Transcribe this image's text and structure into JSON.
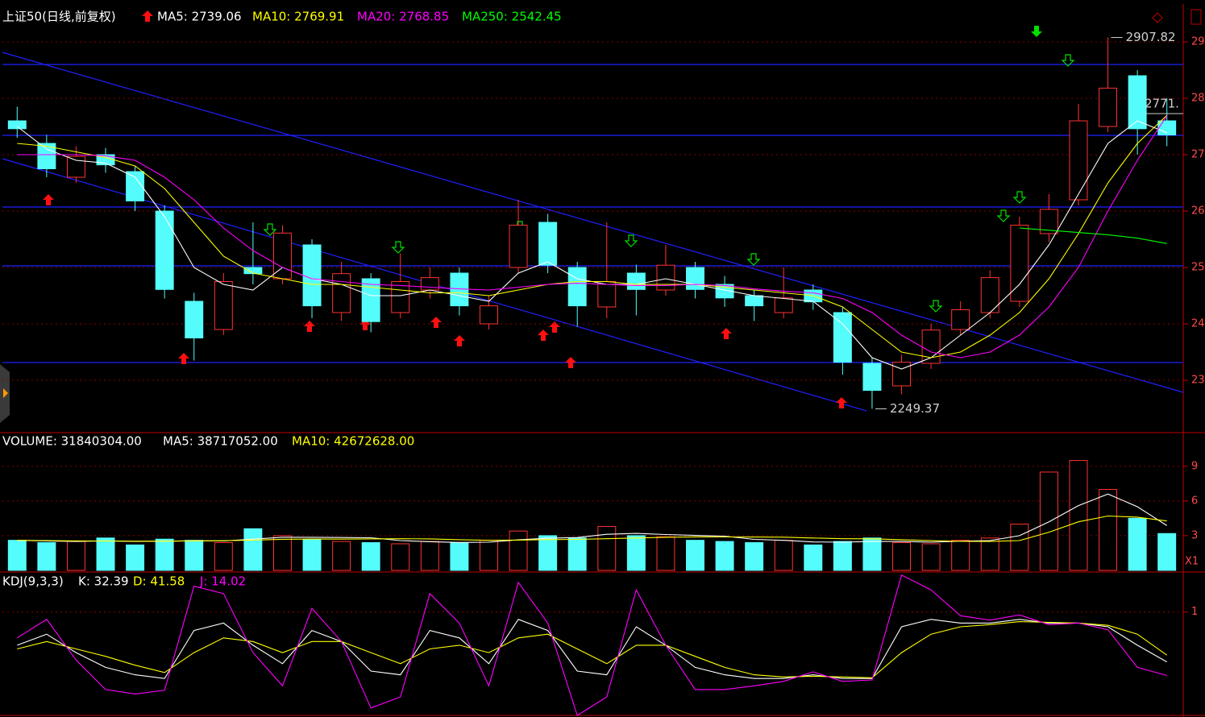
{
  "chart_data": [
    {
      "type": "candlestick",
      "title": "上证50(日线,前复权)",
      "open": [
        2760,
        2720,
        2660,
        2700,
        2670,
        2600,
        2440,
        2390,
        2500,
        2480,
        2540,
        2420,
        2480,
        2420,
        2460,
        2490,
        2400,
        2500,
        2580,
        2500,
        2430,
        2490,
        2460,
        2500,
        2470,
        2450,
        2420,
        2460,
        2420,
        2330,
        2290,
        2330,
        2390,
        2420,
        2440,
        2560,
        2620,
        2750,
        2840,
        2760
      ],
      "high": [
        2785,
        2735,
        2715,
        2712,
        2680,
        2610,
        2455,
        2490,
        2580,
        2575,
        2550,
        2510,
        2490,
        2525,
        2500,
        2500,
        2450,
        2620,
        2595,
        2510,
        2580,
        2505,
        2540,
        2510,
        2485,
        2460,
        2500,
        2470,
        2430,
        2340,
        2345,
        2400,
        2440,
        2495,
        2590,
        2630,
        2790,
        2907.82,
        2850,
        2800
      ],
      "low": [
        2730,
        2660,
        2650,
        2668,
        2600,
        2445,
        2335,
        2380,
        2470,
        2470,
        2410,
        2405,
        2385,
        2410,
        2445,
        2415,
        2390,
        2490,
        2490,
        2395,
        2410,
        2415,
        2450,
        2445,
        2430,
        2405,
        2410,
        2425,
        2310,
        2249.37,
        2275,
        2320,
        2380,
        2410,
        2430,
        2545,
        2610,
        2740,
        2700,
        2715
      ],
      "close": [
        2746,
        2675,
        2697,
        2682,
        2618,
        2461,
        2375,
        2475,
        2489,
        2561,
        2432,
        2489,
        2404,
        2475,
        2482,
        2432,
        2432,
        2575,
        2504,
        2432,
        2475,
        2461,
        2504,
        2461,
        2446,
        2432,
        2446,
        2439,
        2332,
        2282,
        2332,
        2389,
        2425,
        2482,
        2575,
        2603,
        2760,
        2818,
        2746,
        2735
      ],
      "colors": {
        "up": "#ff3232",
        "down": "#54fcfc"
      },
      "overlays": [
        {
          "name": "MA5: 2739.06",
          "color": "#ffffff",
          "values": [
            2750,
            2710,
            2690,
            2685,
            2660,
            2590,
            2500,
            2470,
            2460,
            2500,
            2480,
            2470,
            2450,
            2450,
            2460,
            2450,
            2440,
            2490,
            2510,
            2480,
            2470,
            2470,
            2480,
            2470,
            2460,
            2450,
            2445,
            2440,
            2400,
            2340,
            2320,
            2340,
            2380,
            2420,
            2470,
            2540,
            2630,
            2720,
            2760,
            2739.06
          ]
        },
        {
          "name": "MA10: 2769.91",
          "color": "#ffff00",
          "values": [
            2720,
            2715,
            2705,
            2695,
            2680,
            2640,
            2580,
            2520,
            2490,
            2480,
            2470,
            2470,
            2465,
            2460,
            2455,
            2455,
            2450,
            2460,
            2470,
            2475,
            2475,
            2470,
            2470,
            2470,
            2465,
            2460,
            2455,
            2450,
            2430,
            2390,
            2350,
            2340,
            2350,
            2380,
            2420,
            2480,
            2560,
            2650,
            2720,
            2769.91
          ]
        },
        {
          "name": "MA20: 2768.85",
          "color": "#ff00ff",
          "values": [
            2700,
            2700,
            2700,
            2698,
            2690,
            2660,
            2620,
            2570,
            2530,
            2500,
            2480,
            2475,
            2470,
            2468,
            2465,
            2462,
            2460,
            2465,
            2470,
            2472,
            2470,
            2468,
            2468,
            2470,
            2468,
            2462,
            2458,
            2455,
            2445,
            2420,
            2380,
            2350,
            2340,
            2350,
            2380,
            2430,
            2500,
            2600,
            2690,
            2768.85
          ]
        },
        {
          "name": "MA250: 2542.45",
          "color": "#00ff00",
          "values": [
            null,
            null,
            null,
            null,
            null,
            null,
            null,
            null,
            null,
            null,
            null,
            null,
            null,
            null,
            null,
            null,
            null,
            null,
            null,
            null,
            null,
            null,
            null,
            null,
            null,
            null,
            null,
            null,
            null,
            null,
            null,
            null,
            null,
            null,
            2570,
            2566,
            2562,
            2558,
            2552,
            2542.45
          ]
        }
      ],
      "annotations": [
        {
          "value": 2907.82,
          "at": "high"
        },
        {
          "value": 2249.37,
          "at": "low"
        }
      ],
      "price_marker": {
        "value": 2790,
        "label": "2771."
      },
      "ylim": [
        2210,
        2960
      ],
      "yticks": [
        2300,
        2400,
        2500,
        2600,
        2700,
        2800,
        2900
      ],
      "grid": true
    },
    {
      "type": "bar",
      "series": [
        {
          "name": "VOLUME: 31840304.00",
          "color": "#ffffff",
          "values": [
            26000000,
            24000000,
            25000000,
            28000000,
            22000000,
            27000000,
            26000000,
            24000000,
            36000000,
            30000000,
            27000000,
            25000000,
            24000000,
            23000000,
            25000000,
            24000000,
            26000000,
            34000000,
            30000000,
            28000000,
            38000000,
            30000000,
            29000000,
            26000000,
            25000000,
            24000000,
            26000000,
            22000000,
            25000000,
            28000000,
            24000000,
            23000000,
            26000000,
            28000000,
            40000000,
            85000000,
            95000000,
            70000000,
            45000000,
            31840304
          ]
        },
        {
          "name": "MA5: 38717052.00",
          "color": "#ffffff",
          "values": [
            26000000,
            25500000,
            25000000,
            25500000,
            25000000,
            25200000,
            25600000,
            25400000,
            27000000,
            28600000,
            28600000,
            28400000,
            28200000,
            25800000,
            24800000,
            24200000,
            24400000,
            26400000,
            27800000,
            28400000,
            31200000,
            32000000,
            31000000,
            30200000,
            29600000,
            26800000,
            26000000,
            24600000,
            24400000,
            25000000,
            25000000,
            24400000,
            25200000,
            25800000,
            30000000,
            42000000,
            56000000,
            66000000,
            55000000,
            38717052
          ]
        },
        {
          "name": "MA10: 42672628.00",
          "color": "#ffff00",
          "values": [
            26000000,
            25800000,
            25500000,
            25400000,
            25200000,
            25300000,
            25500000,
            25600000,
            26200000,
            26900000,
            27100000,
            27000000,
            27200000,
            27400000,
            27200000,
            26500000,
            26000000,
            26200000,
            26600000,
            26800000,
            27400000,
            28000000,
            28600000,
            29000000,
            28900000,
            28800000,
            28700000,
            28000000,
            27400000,
            27300000,
            26500000,
            25700000,
            25100000,
            25000000,
            25800000,
            33000000,
            42000000,
            47000000,
            46000000,
            42672628
          ]
        }
      ],
      "unit_label": "X1",
      "ylim": [
        0,
        117000000
      ],
      "yticks": [
        {
          "value": 30000000,
          "label": "3"
        },
        {
          "value": 60000000,
          "label": "6"
        },
        {
          "value": 90000000,
          "label": "9"
        }
      ],
      "grid": true
    },
    {
      "type": "line",
      "title": "KDJ(9,3,3)",
      "series": [
        {
          "name": "K: 32.39",
          "color": "#ffffff",
          "values": [
            55,
            70,
            45,
            25,
            15,
            10,
            75,
            85,
            55,
            30,
            75,
            60,
            20,
            15,
            75,
            65,
            30,
            90,
            75,
            20,
            15,
            80,
            55,
            25,
            15,
            10,
            10,
            15,
            10,
            10,
            80,
            90,
            85,
            85,
            90,
            85,
            85,
            80,
            55,
            32.39
          ]
        },
        {
          "name": "D: 41.58",
          "color": "#ffff00",
          "values": [
            50,
            60,
            50,
            40,
            28,
            18,
            45,
            65,
            60,
            45,
            60,
            60,
            45,
            30,
            50,
            55,
            45,
            65,
            70,
            50,
            30,
            55,
            55,
            40,
            25,
            15,
            12,
            13,
            12,
            11,
            45,
            70,
            80,
            83,
            87,
            86,
            85,
            82,
            70,
            41.58
          ]
        },
        {
          "name": "J: 14.02",
          "color": "#ff00ff",
          "values": [
            65,
            90,
            35,
            -5,
            -11,
            -6,
            135,
            125,
            45,
            0,
            105,
            60,
            -30,
            -15,
            125,
            85,
            0,
            140,
            85,
            -40,
            -15,
            130,
            55,
            -5,
            -5,
            0,
            6,
            19,
            6,
            8,
            150,
            130,
            95,
            89,
            96,
            83,
            85,
            76,
            25,
            14.02
          ]
        }
      ],
      "ylim": [
        -40,
        152
      ],
      "yticks": [
        {
          "value": 100,
          "label": "1"
        }
      ],
      "grid": true
    }
  ]
}
